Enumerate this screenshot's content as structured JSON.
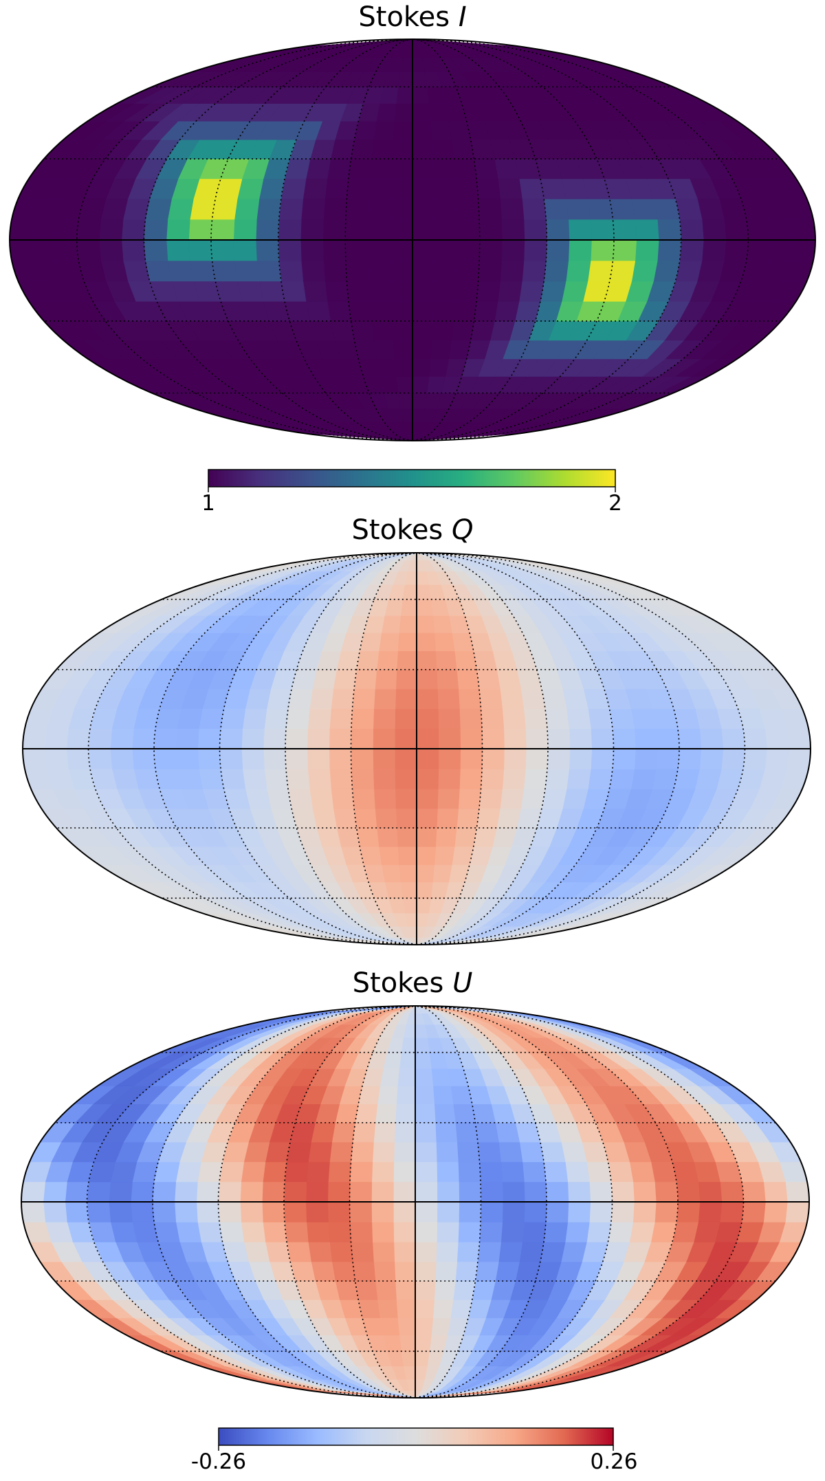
{
  "chart_data": [
    {
      "type": "heatmap",
      "projection": "mollweide",
      "title_prefix": "Stokes",
      "title_symbol": "I",
      "colormap": "viridis",
      "colorbar": {
        "min": 1,
        "max": 2,
        "tick_labels": [
          "1",
          "2"
        ]
      },
      "graticule": true,
      "features": [
        {
          "description": "bright spot",
          "lon_deg": 90,
          "lat_deg": 15,
          "peak_value": 2
        },
        {
          "description": "bright spot",
          "lon_deg": -90,
          "lat_deg": -15,
          "peak_value": 2
        }
      ],
      "background_value": 1
    },
    {
      "type": "heatmap",
      "projection": "mollweide",
      "title_prefix": "Stokes",
      "title_symbol": "Q",
      "colormap": "coolwarm",
      "graticule": true,
      "value_range": [
        -0.26,
        0.26
      ]
    },
    {
      "type": "heatmap",
      "projection": "mollweide",
      "title_prefix": "Stokes",
      "title_symbol": "U",
      "colormap": "coolwarm",
      "colorbar": {
        "min": -0.26,
        "max": 0.26,
        "tick_labels": [
          "-0.26",
          "0.26"
        ]
      },
      "graticule": true,
      "value_range": [
        -0.26,
        0.26
      ]
    }
  ],
  "colors": {
    "viridis": [
      "#440154",
      "#472f7d",
      "#3b528b",
      "#2c728e",
      "#21918c",
      "#28ae80",
      "#5ec962",
      "#addc30",
      "#fde725"
    ],
    "coolwarm": [
      "#3b4cc0",
      "#6788ee",
      "#9abbff",
      "#c9d7f0",
      "#dddddd",
      "#f2cbb7",
      "#f7a889",
      "#e26952",
      "#b40426"
    ]
  }
}
